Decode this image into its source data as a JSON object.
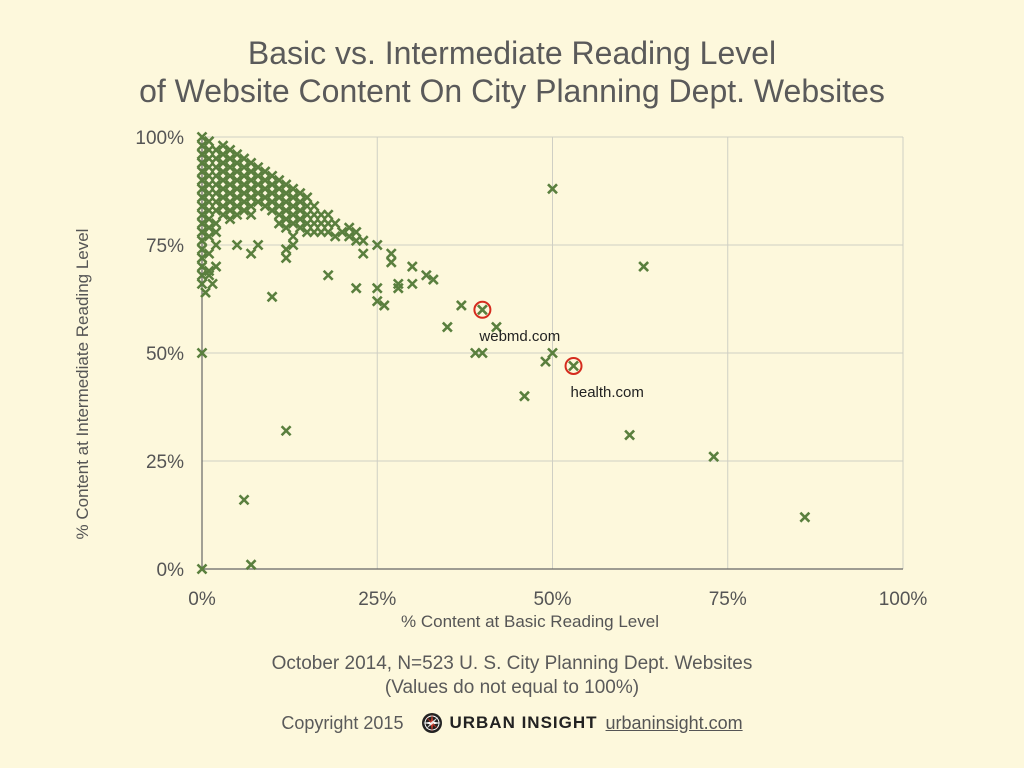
{
  "title_line1": "Basic vs. Intermediate Reading Level",
  "title_line2": "of Website Content On City Planning Dept. Websites",
  "subtitle_line1": "October 2014, N=523 U. S. City Planning Dept. Websites",
  "subtitle_line2": "(Values do not equal to 100%)",
  "footer": {
    "copyright": "Copyright 2015",
    "brand": "URBAN INSIGHT",
    "site": "urbaninsight.com",
    "logo_icon": "compass-rose-icon"
  },
  "colors": {
    "background": "#fdf8dc",
    "marker": "#5a7f3e",
    "highlight": "#d52b1e",
    "grid": "#cfcfc4",
    "text": "#555555"
  },
  "chart_data": {
    "type": "scatter",
    "xlabel": "% Content at Basic Reading Level",
    "ylabel": "% Content at Intermediate Reading Level",
    "xlim": [
      0,
      100
    ],
    "ylim": [
      0,
      100
    ],
    "x_ticks": [
      "0%",
      "25%",
      "50%",
      "75%",
      "100%"
    ],
    "y_ticks": [
      "0%",
      "25%",
      "50%",
      "75%",
      "100%"
    ],
    "grid": true,
    "marker": "x",
    "points": [
      [
        0,
        100
      ],
      [
        0,
        98
      ],
      [
        0,
        96
      ],
      [
        0,
        94
      ],
      [
        0,
        92
      ],
      [
        0,
        90
      ],
      [
        0,
        88
      ],
      [
        0,
        86
      ],
      [
        0,
        84
      ],
      [
        0,
        82
      ],
      [
        0,
        80
      ],
      [
        0,
        78
      ],
      [
        0,
        76
      ],
      [
        0,
        74
      ],
      [
        0,
        72
      ],
      [
        0,
        70
      ],
      [
        0,
        68
      ],
      [
        0,
        66
      ],
      [
        1,
        99
      ],
      [
        1,
        97
      ],
      [
        1,
        95
      ],
      [
        1,
        93
      ],
      [
        1,
        91
      ],
      [
        1,
        89
      ],
      [
        1,
        87
      ],
      [
        1,
        85
      ],
      [
        1,
        83
      ],
      [
        1,
        81
      ],
      [
        1,
        79
      ],
      [
        1,
        77
      ],
      [
        1,
        73
      ],
      [
        1,
        69
      ],
      [
        2,
        97
      ],
      [
        2,
        95
      ],
      [
        2,
        93
      ],
      [
        2,
        91
      ],
      [
        2,
        89
      ],
      [
        2,
        87
      ],
      [
        2,
        85
      ],
      [
        2,
        83
      ],
      [
        2,
        80
      ],
      [
        2,
        78
      ],
      [
        2,
        75
      ],
      [
        3,
        98
      ],
      [
        3,
        96
      ],
      [
        3,
        94
      ],
      [
        3,
        92
      ],
      [
        3,
        90
      ],
      [
        3,
        88
      ],
      [
        3,
        86
      ],
      [
        3,
        84
      ],
      [
        3,
        82
      ],
      [
        4,
        97
      ],
      [
        4,
        95
      ],
      [
        4,
        93
      ],
      [
        4,
        91
      ],
      [
        4,
        89
      ],
      [
        4,
        87
      ],
      [
        4,
        85
      ],
      [
        4,
        83
      ],
      [
        4,
        81
      ],
      [
        5,
        96
      ],
      [
        5,
        94
      ],
      [
        5,
        92
      ],
      [
        5,
        90
      ],
      [
        5,
        88
      ],
      [
        5,
        86
      ],
      [
        5,
        84
      ],
      [
        5,
        82
      ],
      [
        6,
        95
      ],
      [
        6,
        93
      ],
      [
        6,
        91
      ],
      [
        6,
        89
      ],
      [
        6,
        87
      ],
      [
        6,
        85
      ],
      [
        6,
        83
      ],
      [
        7,
        94
      ],
      [
        7,
        92
      ],
      [
        7,
        90
      ],
      [
        7,
        88
      ],
      [
        7,
        86
      ],
      [
        7,
        84
      ],
      [
        7,
        82
      ],
      [
        8,
        93
      ],
      [
        8,
        91
      ],
      [
        8,
        89
      ],
      [
        8,
        87
      ],
      [
        8,
        85
      ],
      [
        9,
        92
      ],
      [
        9,
        90
      ],
      [
        9,
        88
      ],
      [
        9,
        86
      ],
      [
        9,
        84
      ],
      [
        10,
        91
      ],
      [
        10,
        89
      ],
      [
        10,
        87
      ],
      [
        10,
        85
      ],
      [
        10,
        83
      ],
      [
        11,
        90
      ],
      [
        11,
        88
      ],
      [
        11,
        86
      ],
      [
        11,
        84
      ],
      [
        11,
        82
      ],
      [
        11,
        80
      ],
      [
        12,
        89
      ],
      [
        12,
        87
      ],
      [
        12,
        85
      ],
      [
        12,
        83
      ],
      [
        12,
        81
      ],
      [
        12,
        79
      ],
      [
        13,
        88
      ],
      [
        13,
        86
      ],
      [
        13,
        84
      ],
      [
        13,
        82
      ],
      [
        13,
        80
      ],
      [
        13,
        77
      ],
      [
        13,
        75
      ],
      [
        14,
        87
      ],
      [
        14,
        85
      ],
      [
        14,
        83
      ],
      [
        14,
        81
      ],
      [
        14,
        79
      ],
      [
        15,
        86
      ],
      [
        15,
        84
      ],
      [
        15,
        82
      ],
      [
        15,
        80
      ],
      [
        15,
        78
      ],
      [
        16,
        84
      ],
      [
        16,
        82
      ],
      [
        16,
        80
      ],
      [
        16,
        78
      ],
      [
        17,
        82
      ],
      [
        17,
        80
      ],
      [
        17,
        78
      ],
      [
        18,
        82
      ],
      [
        18,
        80
      ],
      [
        18,
        78
      ],
      [
        19,
        80
      ],
      [
        19,
        77
      ],
      [
        20,
        78
      ],
      [
        21,
        79
      ],
      [
        21,
        77
      ],
      [
        22,
        78
      ],
      [
        22,
        76
      ],
      [
        23,
        76
      ],
      [
        23,
        73
      ],
      [
        0,
        50
      ],
      [
        0,
        0
      ],
      [
        0.5,
        64
      ],
      [
        1,
        68
      ],
      [
        1.5,
        66
      ],
      [
        2,
        70
      ],
      [
        5,
        75
      ],
      [
        7,
        73
      ],
      [
        8,
        75
      ],
      [
        10,
        63
      ],
      [
        12,
        74
      ],
      [
        12,
        72
      ],
      [
        12,
        32
      ],
      [
        6,
        16
      ],
      [
        7,
        1
      ],
      [
        18,
        68
      ],
      [
        22,
        65
      ],
      [
        25,
        65
      ],
      [
        25,
        62
      ],
      [
        26,
        61
      ],
      [
        25,
        75
      ],
      [
        27,
        73
      ],
      [
        27,
        71
      ],
      [
        28,
        66
      ],
      [
        28,
        65
      ],
      [
        30,
        70
      ],
      [
        30,
        66
      ],
      [
        32,
        68
      ],
      [
        33,
        67
      ],
      [
        35,
        56
      ],
      [
        37,
        61
      ],
      [
        39,
        50
      ],
      [
        40,
        50
      ],
      [
        42,
        56
      ],
      [
        46,
        40
      ],
      [
        49,
        48
      ],
      [
        50,
        50
      ],
      [
        50,
        88
      ],
      [
        63,
        70
      ],
      [
        61,
        31
      ],
      [
        73,
        26
      ],
      [
        86,
        12
      ]
    ],
    "highlighted": [
      {
        "x": 40,
        "y": 60,
        "label": "webmd.com"
      },
      {
        "x": 53,
        "y": 47,
        "label": "health.com"
      }
    ]
  }
}
